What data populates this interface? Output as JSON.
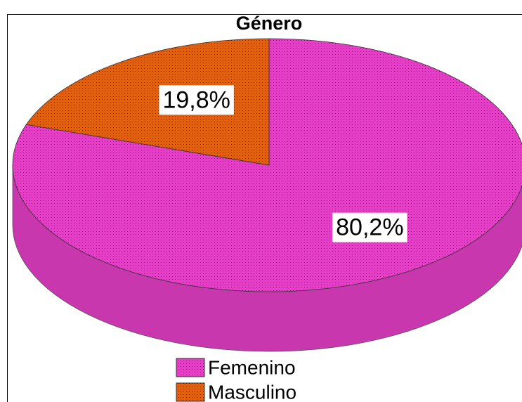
{
  "chart_data": {
    "type": "pie",
    "title": "Género",
    "categories": [
      "Femenino",
      "Masculino"
    ],
    "values": [
      80.2,
      19.8
    ],
    "value_labels": [
      "80,2%",
      "19,8%"
    ],
    "colors": [
      "#e43fc6",
      "#e0600f"
    ]
  }
}
